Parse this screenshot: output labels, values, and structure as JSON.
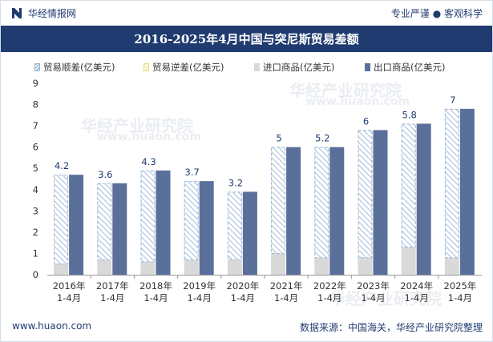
{
  "header": {
    "brand": "华经情报网",
    "tagline": "专业严谨 ● 客观科学"
  },
  "watermark": {
    "text": "华经产业研究院",
    "url": "www.huaon.com"
  },
  "footer": {
    "website": "www.huaon.com",
    "source": "数据来源：中国海关，华经产业研究院整理"
  },
  "colors": {
    "header_bg": "#1f3b70",
    "export": "#5b6f9b",
    "import": "#d9d9d9",
    "surplus_hatch": "#9bb7d4",
    "deficit_hatch": "#f2e6a8"
  },
  "chart_data": {
    "type": "bar",
    "title": "2016-2025年4月中国与突尼斯贸易差额",
    "categories": [
      "2016年\n1-4月",
      "2017年\n1-4月",
      "2018年\n1-4月",
      "2019年\n1-4月",
      "2020年\n1-4月",
      "2021年\n1-4月",
      "2022年\n1-4月",
      "2023年\n1-4月",
      "2024年\n1-4月",
      "2025年\n1-4月"
    ],
    "series": [
      {
        "name": "贸易顺差(亿美元)",
        "values": [
          4.2,
          3.6,
          4.3,
          3.7,
          3.2,
          5,
          5.2,
          6,
          5.8,
          7
        ]
      },
      {
        "name": "贸易逆差(亿美元)",
        "values": [
          0,
          0,
          0,
          0,
          0,
          0,
          0,
          0,
          0,
          0
        ]
      },
      {
        "name": "进口商品(亿美元)",
        "values": [
          0.5,
          0.7,
          0.6,
          0.7,
          0.7,
          1.0,
          0.8,
          0.8,
          1.3,
          0.8
        ]
      },
      {
        "name": "出口商品(亿美元)",
        "values": [
          4.7,
          4.3,
          4.9,
          4.4,
          3.9,
          6.0,
          6.0,
          6.8,
          7.1,
          7.8
        ]
      }
    ],
    "data_labels": [
      "4.2",
      "3.6",
      "4.3",
      "3.7",
      "3.2",
      "5",
      "5.2",
      "6",
      "5.8",
      "7"
    ],
    "ylim": [
      0,
      9
    ],
    "yticks": [
      "0",
      "1",
      "2",
      "3",
      "4",
      "5",
      "6",
      "7",
      "8",
      "9"
    ],
    "xlabel": "",
    "ylabel": "",
    "legend_position": "top",
    "grid": false
  }
}
